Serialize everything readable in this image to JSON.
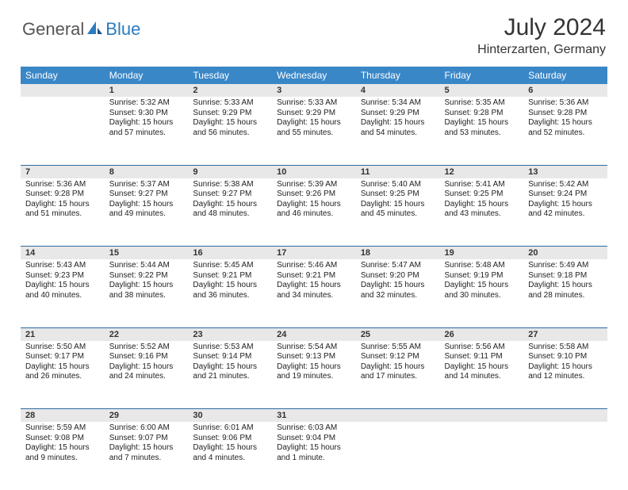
{
  "logo": {
    "general": "General",
    "blue": "Blue"
  },
  "title": "July 2024",
  "location": "Hinterzarten, Germany",
  "colors": {
    "header_bg": "#3a87c8",
    "daynum_bg": "#e8e8e8",
    "row_border": "#2b6ca3",
    "logo_blue": "#2b7bbf"
  },
  "weekdays": [
    "Sunday",
    "Monday",
    "Tuesday",
    "Wednesday",
    "Thursday",
    "Friday",
    "Saturday"
  ],
  "weeks": [
    [
      {
        "n": "",
        "sr": "",
        "ss": "",
        "dl": ""
      },
      {
        "n": "1",
        "sr": "Sunrise: 5:32 AM",
        "ss": "Sunset: 9:30 PM",
        "dl": "Daylight: 15 hours and 57 minutes."
      },
      {
        "n": "2",
        "sr": "Sunrise: 5:33 AM",
        "ss": "Sunset: 9:29 PM",
        "dl": "Daylight: 15 hours and 56 minutes."
      },
      {
        "n": "3",
        "sr": "Sunrise: 5:33 AM",
        "ss": "Sunset: 9:29 PM",
        "dl": "Daylight: 15 hours and 55 minutes."
      },
      {
        "n": "4",
        "sr": "Sunrise: 5:34 AM",
        "ss": "Sunset: 9:29 PM",
        "dl": "Daylight: 15 hours and 54 minutes."
      },
      {
        "n": "5",
        "sr": "Sunrise: 5:35 AM",
        "ss": "Sunset: 9:28 PM",
        "dl": "Daylight: 15 hours and 53 minutes."
      },
      {
        "n": "6",
        "sr": "Sunrise: 5:36 AM",
        "ss": "Sunset: 9:28 PM",
        "dl": "Daylight: 15 hours and 52 minutes."
      }
    ],
    [
      {
        "n": "7",
        "sr": "Sunrise: 5:36 AM",
        "ss": "Sunset: 9:28 PM",
        "dl": "Daylight: 15 hours and 51 minutes."
      },
      {
        "n": "8",
        "sr": "Sunrise: 5:37 AM",
        "ss": "Sunset: 9:27 PM",
        "dl": "Daylight: 15 hours and 49 minutes."
      },
      {
        "n": "9",
        "sr": "Sunrise: 5:38 AM",
        "ss": "Sunset: 9:27 PM",
        "dl": "Daylight: 15 hours and 48 minutes."
      },
      {
        "n": "10",
        "sr": "Sunrise: 5:39 AM",
        "ss": "Sunset: 9:26 PM",
        "dl": "Daylight: 15 hours and 46 minutes."
      },
      {
        "n": "11",
        "sr": "Sunrise: 5:40 AM",
        "ss": "Sunset: 9:25 PM",
        "dl": "Daylight: 15 hours and 45 minutes."
      },
      {
        "n": "12",
        "sr": "Sunrise: 5:41 AM",
        "ss": "Sunset: 9:25 PM",
        "dl": "Daylight: 15 hours and 43 minutes."
      },
      {
        "n": "13",
        "sr": "Sunrise: 5:42 AM",
        "ss": "Sunset: 9:24 PM",
        "dl": "Daylight: 15 hours and 42 minutes."
      }
    ],
    [
      {
        "n": "14",
        "sr": "Sunrise: 5:43 AM",
        "ss": "Sunset: 9:23 PM",
        "dl": "Daylight: 15 hours and 40 minutes."
      },
      {
        "n": "15",
        "sr": "Sunrise: 5:44 AM",
        "ss": "Sunset: 9:22 PM",
        "dl": "Daylight: 15 hours and 38 minutes."
      },
      {
        "n": "16",
        "sr": "Sunrise: 5:45 AM",
        "ss": "Sunset: 9:21 PM",
        "dl": "Daylight: 15 hours and 36 minutes."
      },
      {
        "n": "17",
        "sr": "Sunrise: 5:46 AM",
        "ss": "Sunset: 9:21 PM",
        "dl": "Daylight: 15 hours and 34 minutes."
      },
      {
        "n": "18",
        "sr": "Sunrise: 5:47 AM",
        "ss": "Sunset: 9:20 PM",
        "dl": "Daylight: 15 hours and 32 minutes."
      },
      {
        "n": "19",
        "sr": "Sunrise: 5:48 AM",
        "ss": "Sunset: 9:19 PM",
        "dl": "Daylight: 15 hours and 30 minutes."
      },
      {
        "n": "20",
        "sr": "Sunrise: 5:49 AM",
        "ss": "Sunset: 9:18 PM",
        "dl": "Daylight: 15 hours and 28 minutes."
      }
    ],
    [
      {
        "n": "21",
        "sr": "Sunrise: 5:50 AM",
        "ss": "Sunset: 9:17 PM",
        "dl": "Daylight: 15 hours and 26 minutes."
      },
      {
        "n": "22",
        "sr": "Sunrise: 5:52 AM",
        "ss": "Sunset: 9:16 PM",
        "dl": "Daylight: 15 hours and 24 minutes."
      },
      {
        "n": "23",
        "sr": "Sunrise: 5:53 AM",
        "ss": "Sunset: 9:14 PM",
        "dl": "Daylight: 15 hours and 21 minutes."
      },
      {
        "n": "24",
        "sr": "Sunrise: 5:54 AM",
        "ss": "Sunset: 9:13 PM",
        "dl": "Daylight: 15 hours and 19 minutes."
      },
      {
        "n": "25",
        "sr": "Sunrise: 5:55 AM",
        "ss": "Sunset: 9:12 PM",
        "dl": "Daylight: 15 hours and 17 minutes."
      },
      {
        "n": "26",
        "sr": "Sunrise: 5:56 AM",
        "ss": "Sunset: 9:11 PM",
        "dl": "Daylight: 15 hours and 14 minutes."
      },
      {
        "n": "27",
        "sr": "Sunrise: 5:58 AM",
        "ss": "Sunset: 9:10 PM",
        "dl": "Daylight: 15 hours and 12 minutes."
      }
    ],
    [
      {
        "n": "28",
        "sr": "Sunrise: 5:59 AM",
        "ss": "Sunset: 9:08 PM",
        "dl": "Daylight: 15 hours and 9 minutes."
      },
      {
        "n": "29",
        "sr": "Sunrise: 6:00 AM",
        "ss": "Sunset: 9:07 PM",
        "dl": "Daylight: 15 hours and 7 minutes."
      },
      {
        "n": "30",
        "sr": "Sunrise: 6:01 AM",
        "ss": "Sunset: 9:06 PM",
        "dl": "Daylight: 15 hours and 4 minutes."
      },
      {
        "n": "31",
        "sr": "Sunrise: 6:03 AM",
        "ss": "Sunset: 9:04 PM",
        "dl": "Daylight: 15 hours and 1 minute."
      },
      {
        "n": "",
        "sr": "",
        "ss": "",
        "dl": ""
      },
      {
        "n": "",
        "sr": "",
        "ss": "",
        "dl": ""
      },
      {
        "n": "",
        "sr": "",
        "ss": "",
        "dl": ""
      }
    ]
  ]
}
